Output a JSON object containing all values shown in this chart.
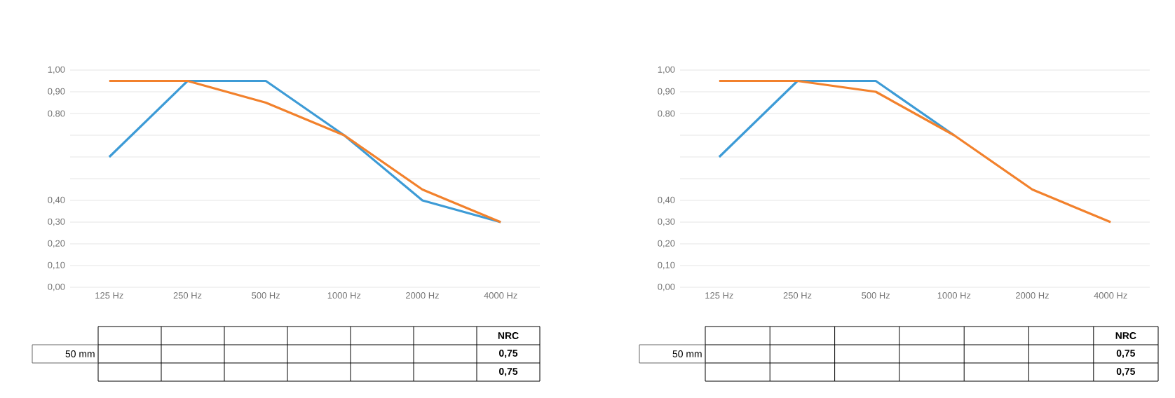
{
  "chart_data": [
    {
      "type": "line",
      "categories": [
        "125 Hz",
        "250 Hz",
        "500 Hz",
        "1000 Hz",
        "2000 Hz",
        "4000 Hz"
      ],
      "series": [
        {
          "color": "#3d9bd6",
          "values": [
            0.6,
            0.95,
            0.95,
            0.7,
            0.4,
            0.3
          ]
        },
        {
          "color": "#f2812c",
          "values": [
            0.95,
            0.95,
            0.85,
            0.7,
            0.45,
            0.3
          ]
        }
      ],
      "ylim": [
        0,
        1
      ],
      "yticks": [
        {
          "value": 0,
          "label": "0,00"
        },
        {
          "value": 0.1,
          "label": "0,10"
        },
        {
          "value": 0.2,
          "label": "0,20"
        },
        {
          "value": 0.3,
          "label": "0,30"
        },
        {
          "value": 0.4,
          "label": "0,40"
        },
        {
          "value": 0.5,
          "label": null
        },
        {
          "value": 0.6,
          "label": null
        },
        {
          "value": 0.7,
          "label": null
        },
        {
          "value": 0.8,
          "label": "0.80"
        },
        {
          "value": 0.9,
          "label": "0,90"
        },
        {
          "value": 1,
          "label": "1,00"
        }
      ],
      "grid": "y",
      "marker": "none",
      "line_style": "solid",
      "annotations": [
        "50 mm",
        "NRC",
        "0,75",
        "0,75"
      ]
    },
    {
      "type": "line",
      "categories": [
        "125 Hz",
        "250 Hz",
        "500 Hz",
        "1000 Hz",
        "2000 Hz",
        "4000 Hz"
      ],
      "series": [
        {
          "color": "#3d9bd6",
          "values": [
            0.6,
            0.95,
            0.95,
            0.7,
            null,
            null
          ]
        },
        {
          "color": "#f2812c",
          "values": [
            0.95,
            0.95,
            0.9,
            0.7,
            0.45,
            0.3
          ]
        }
      ],
      "ylim": [
        0,
        1
      ],
      "yticks": [
        {
          "value": 0,
          "label": "0,00"
        },
        {
          "value": 0.1,
          "label": "0,10"
        },
        {
          "value": 0.2,
          "label": "0,20"
        },
        {
          "value": 0.3,
          "label": "0,30"
        },
        {
          "value": 0.4,
          "label": "0,40"
        },
        {
          "value": 0.5,
          "label": null
        },
        {
          "value": 0.6,
          "label": null
        },
        {
          "value": 0.7,
          "label": null
        },
        {
          "value": 0.8,
          "label": "0.80"
        },
        {
          "value": 0.9,
          "label": "0,90"
        },
        {
          "value": 1,
          "label": "1,00"
        }
      ],
      "grid": "y",
      "marker": "none",
      "line_style": "solid",
      "annotations": [
        "50 mm",
        "NRC",
        "0,75",
        "0,75"
      ]
    }
  ]
}
